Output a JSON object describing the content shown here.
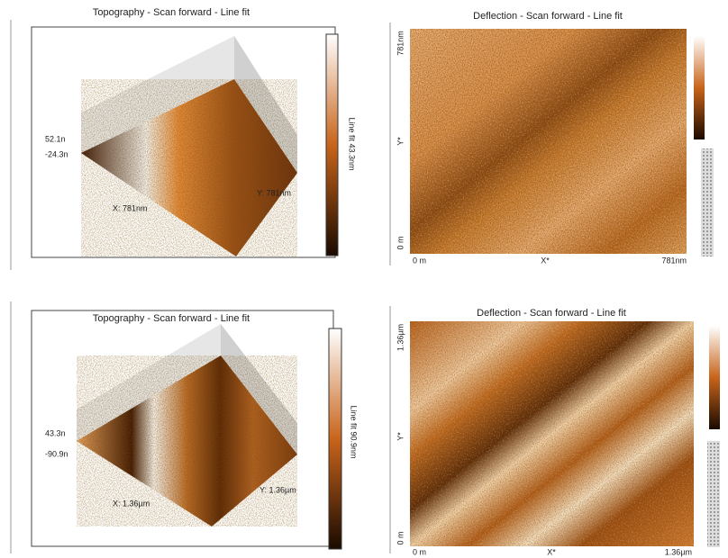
{
  "panels": [
    {
      "title": "Topography - Scan forward - Line fit",
      "z_max": "52.1n",
      "z_min": "-24.3n",
      "y_size": "Y: 781nm",
      "x_size": "X: 781nm",
      "colorbar": "Line fit 43.3nm"
    },
    {
      "title": "Deflection - Scan forward - Line fit",
      "y_max": "781nm",
      "y_axis": "Y*",
      "y_min": "0 m",
      "x_min": "0 m",
      "x_axis": "X*",
      "x_max": "781nm"
    },
    {
      "title": "Topography - Scan forward - Line fit",
      "z_max": "43.3n",
      "z_min": "-90.9n",
      "y_size": "Y: 1.36µm",
      "x_size": "X: 1.36µm",
      "colorbar": "Line fit 90.9nm"
    },
    {
      "title": "Deflection - Scan forward - Line fit",
      "y_max": "1.36µm",
      "y_axis": "Y*",
      "y_min": "0 m",
      "x_min": "0 m",
      "x_axis": "X*",
      "x_max": "1.36µm"
    }
  ]
}
